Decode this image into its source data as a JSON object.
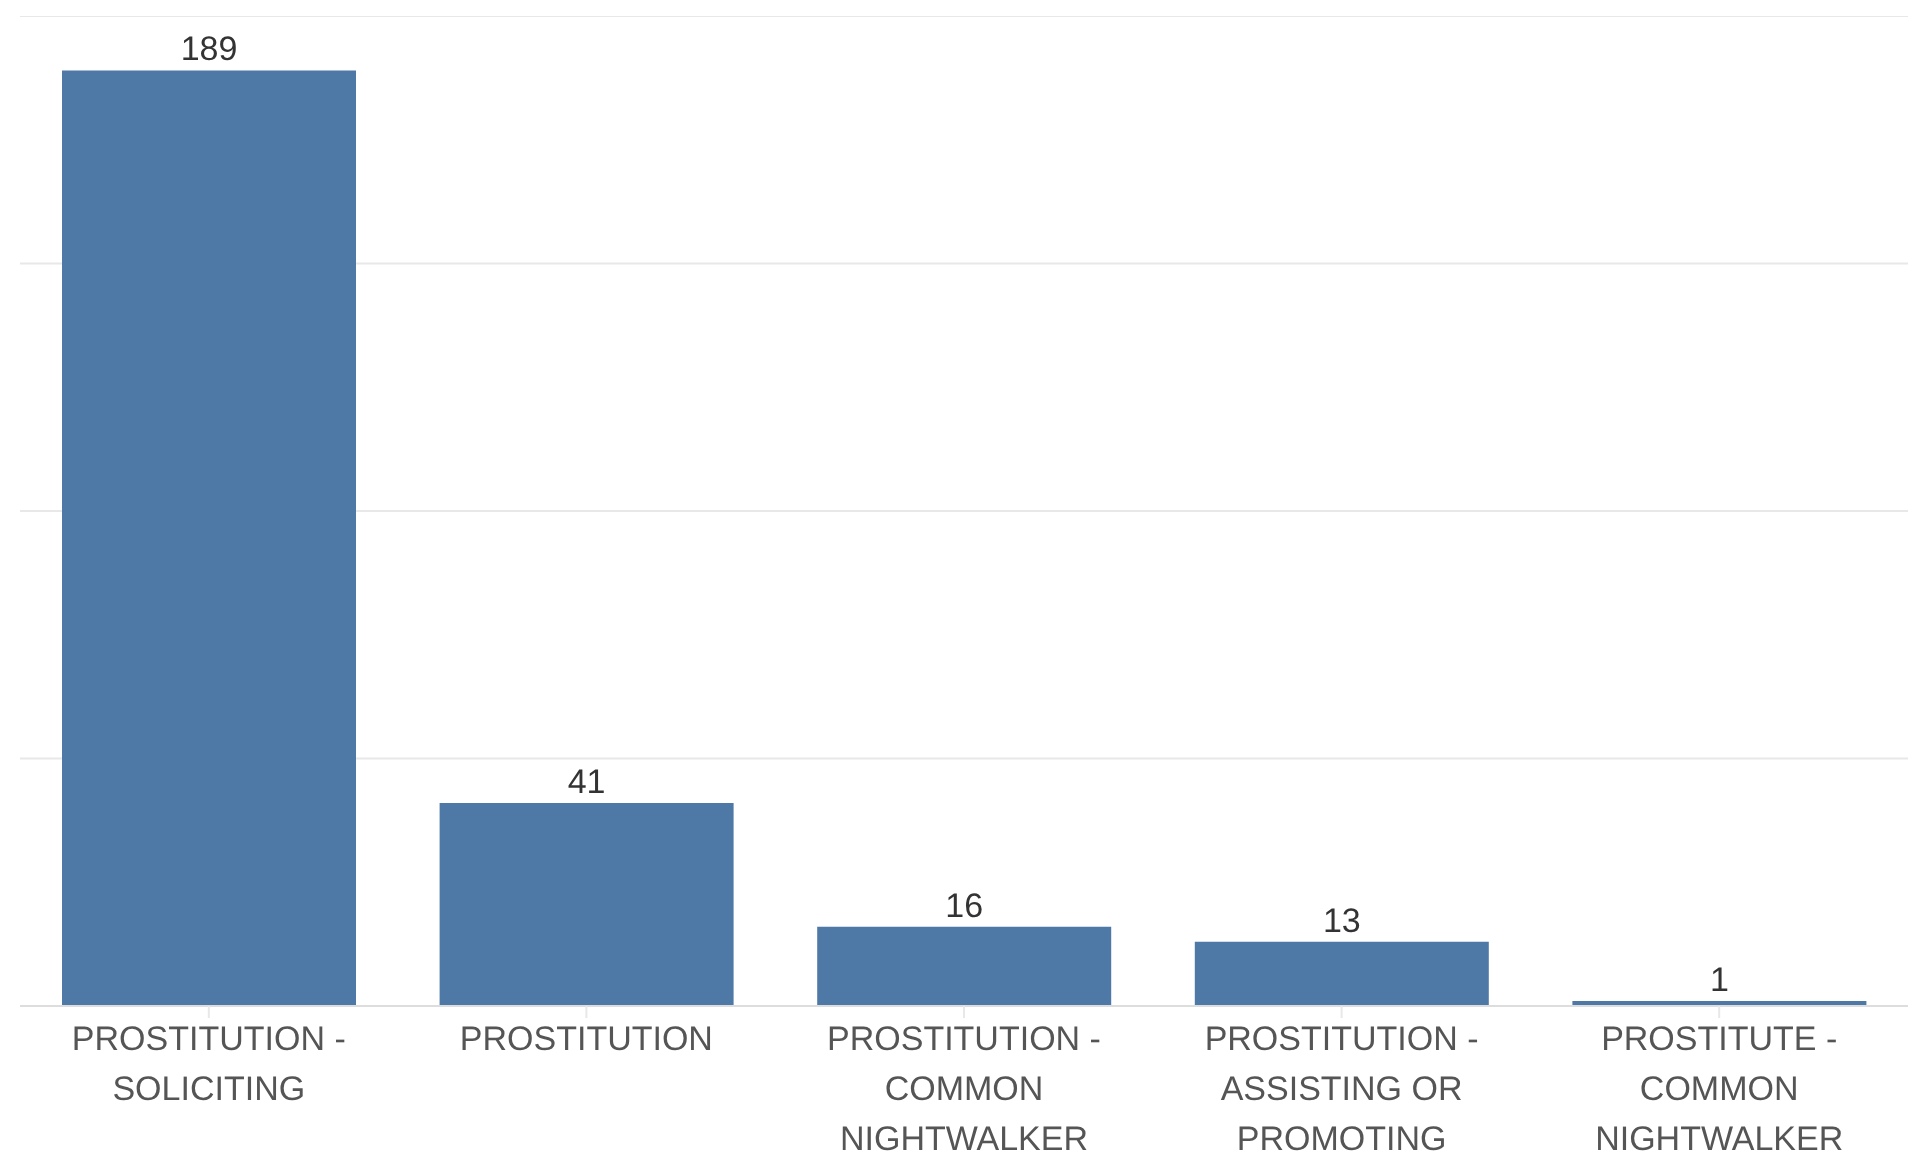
{
  "chart_data": {
    "type": "bar",
    "categories": [
      "PROSTITUTION - SOLICITING",
      "PROSTITUTION",
      "PROSTITUTION - COMMON NIGHTWALKER",
      "PROSTITUTION - ASSISTING OR PROMOTING",
      "PROSTITUTE - COMMON NIGHTWALKER"
    ],
    "values": [
      189,
      41,
      16,
      13,
      1
    ],
    "color": "#4e79a7",
    "ylim": [
      0,
      200
    ],
    "grid": "y",
    "tick_labels": "x",
    "data_labels": true
  }
}
